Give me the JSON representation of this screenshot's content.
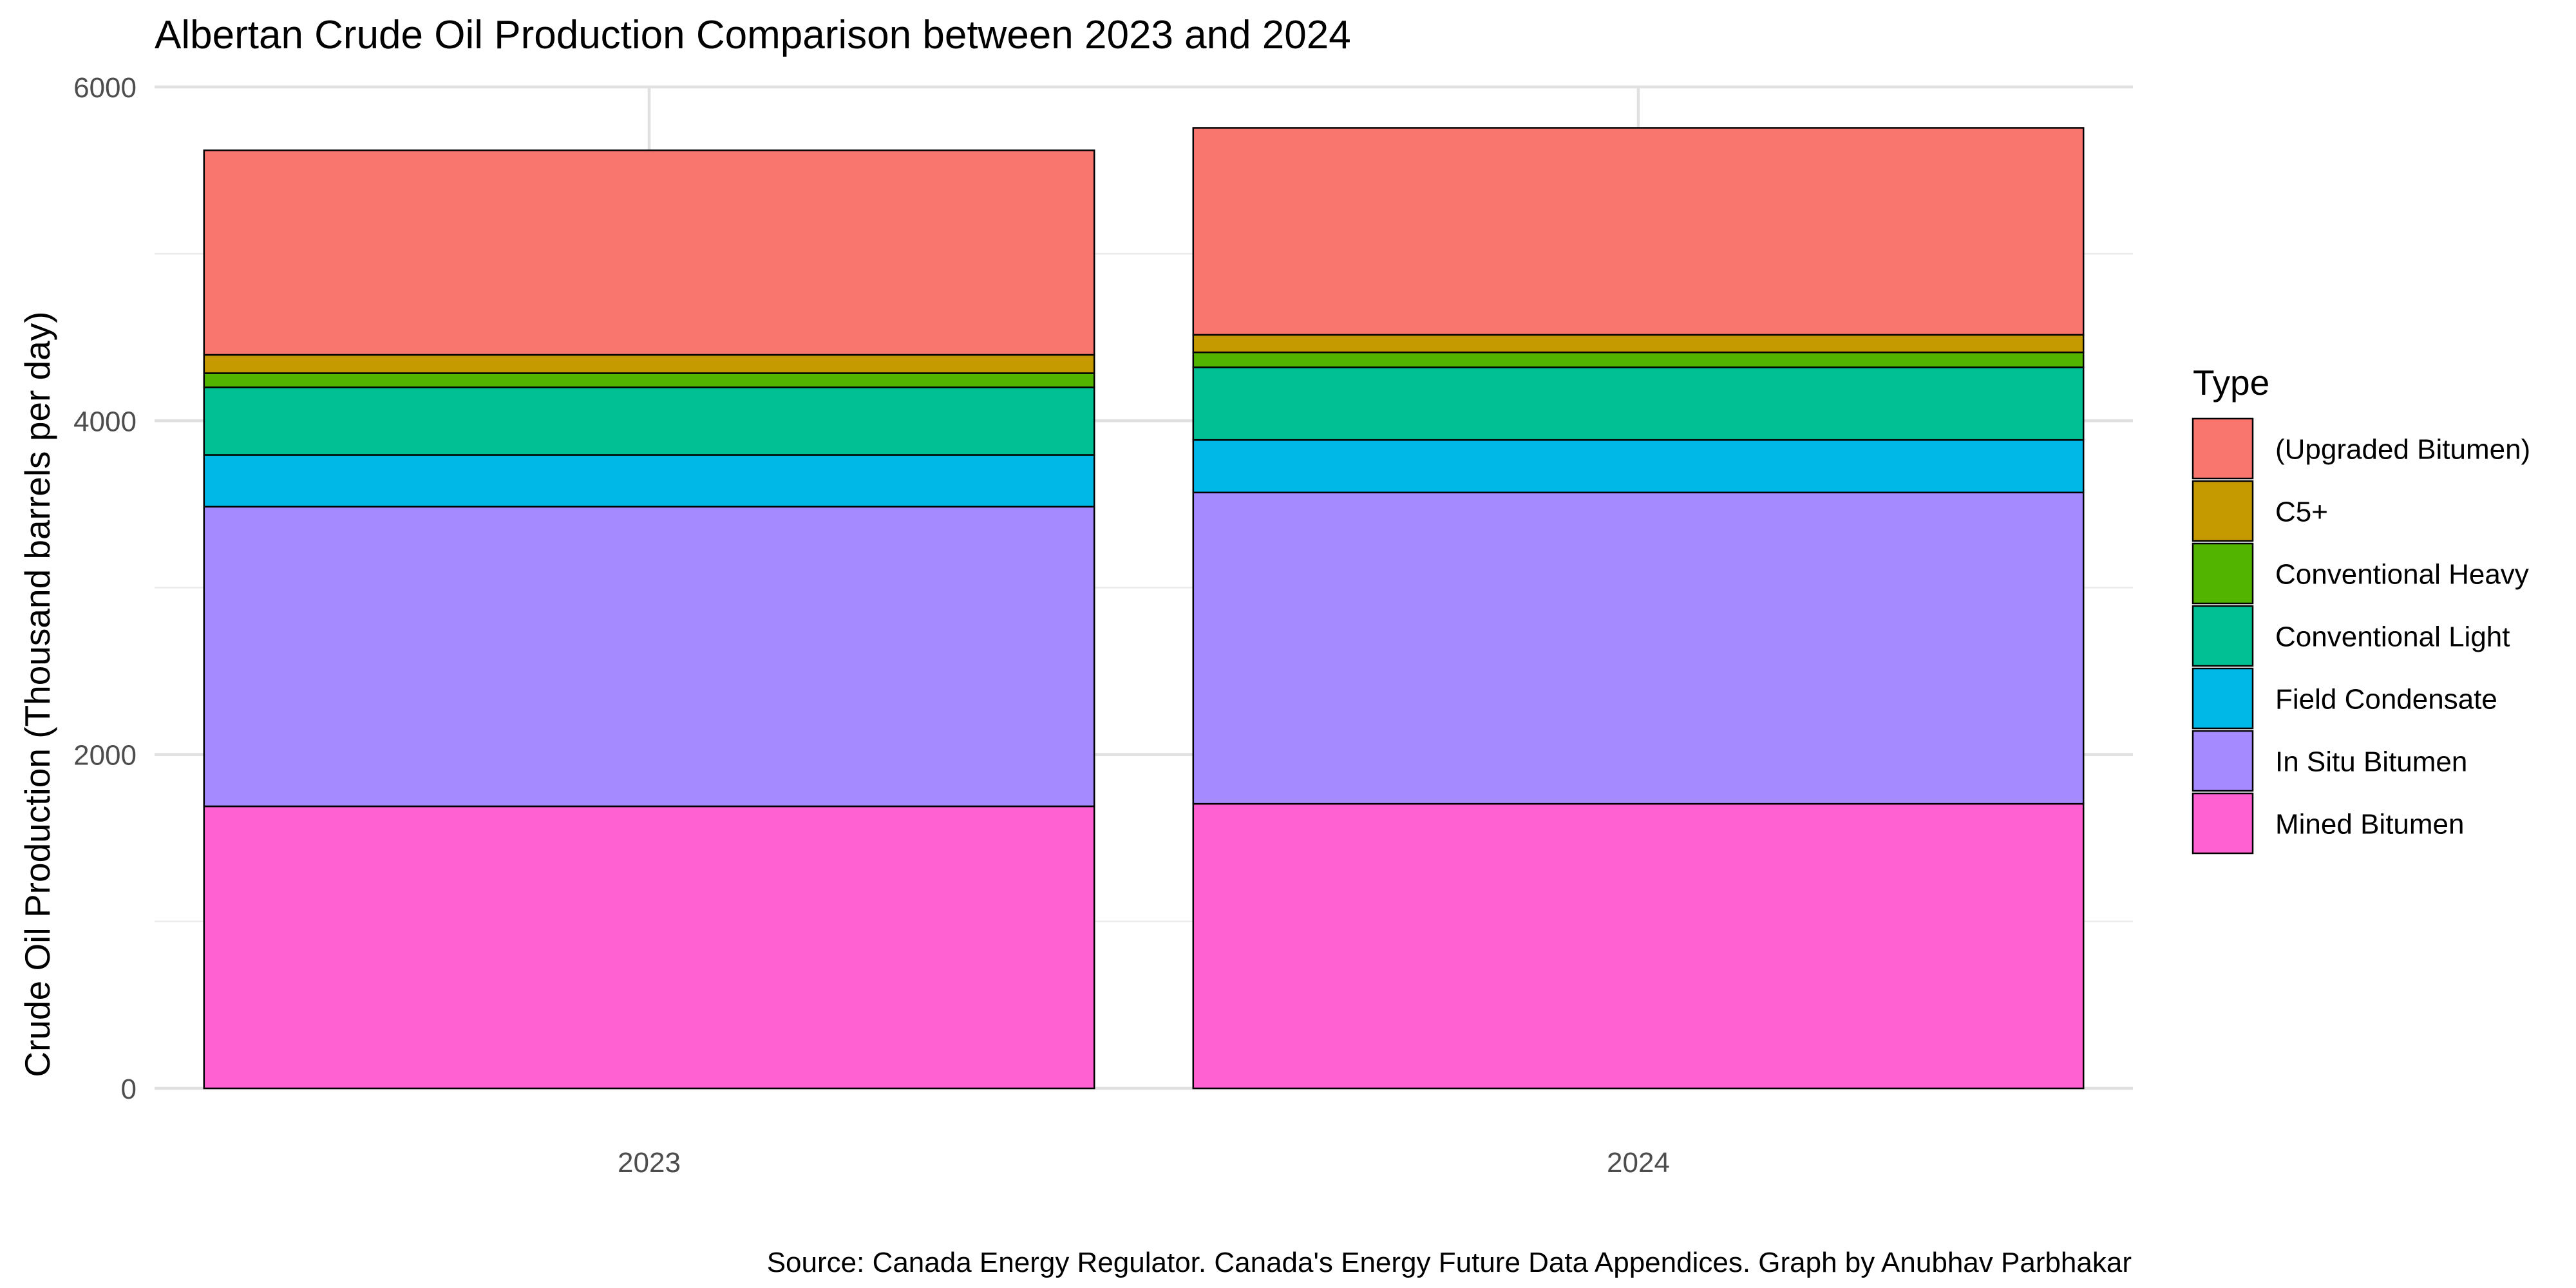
{
  "title": "Albertan Crude Oil Production Comparison between 2023 and 2024",
  "ylabel": "Crude Oil Production (Thousand barrels per day)",
  "xlabel": "",
  "caption": "Source: Canada Energy Regulator. Canada's Energy Future Data Appendices. Graph by Anubhav Parbhakar",
  "legend_title": "Type",
  "chart_data": {
    "type": "bar",
    "stacked": true,
    "categories": [
      "2023",
      "2024"
    ],
    "ylim": [
      0,
      6000
    ],
    "yticks": [
      0,
      2000,
      4000,
      6000
    ],
    "grid": true,
    "legend_position": "right",
    "series": [
      {
        "name": "Mined Bitumen",
        "color": "#FF61D3",
        "values": [
          1690,
          1705
        ]
      },
      {
        "name": "In Situ Bitumen",
        "color": "#A58AFF",
        "values": [
          1795,
          1865
        ]
      },
      {
        "name": "Field Condensate",
        "color": "#00B8E7",
        "values": [
          310,
          315
        ]
      },
      {
        "name": "Conventional Light",
        "color": "#00C094",
        "values": [
          405,
          435
        ]
      },
      {
        "name": "Conventional Heavy",
        "color": "#53B400",
        "values": [
          85,
          90
        ]
      },
      {
        "name": "C5+",
        "color": "#C49A00",
        "values": [
          110,
          105
        ]
      },
      {
        "name": "(Upgraded Bitumen)",
        "color": "#F8766D",
        "values": [
          1225,
          1240
        ]
      }
    ],
    "legend_order": [
      "(Upgraded Bitumen)",
      "C5+",
      "Conventional Heavy",
      "Conventional Light",
      "Field Condensate",
      "In Situ Bitumen",
      "Mined Bitumen"
    ]
  }
}
